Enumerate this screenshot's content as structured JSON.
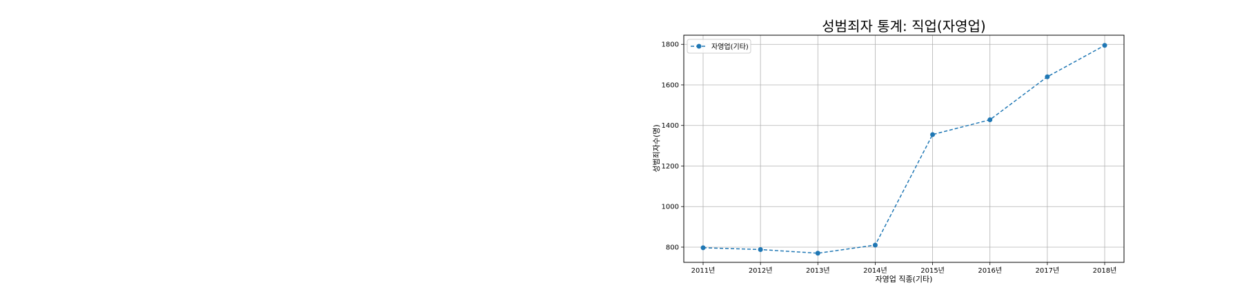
{
  "chart_data": {
    "type": "line",
    "title": "성범죄자 통계: 직업(자영업)",
    "xlabel": "자영업 직종(기타)",
    "ylabel": "성범죄자수(명)",
    "categories": [
      "2011년",
      "2012년",
      "2013년",
      "2014년",
      "2015년",
      "2016년",
      "2017년",
      "2018년"
    ],
    "series": [
      {
        "name": "자영업(기타)",
        "values": [
          797,
          788,
          770,
          810,
          1355,
          1428,
          1640,
          1795
        ],
        "color": "#1f77b4",
        "line_style": "dashed",
        "marker": "circle"
      }
    ],
    "ylim": [
      725,
      1845
    ],
    "yticks": [
      800,
      1000,
      1200,
      1400,
      1600,
      1800
    ],
    "grid": true,
    "legend_position": "upper-left"
  }
}
